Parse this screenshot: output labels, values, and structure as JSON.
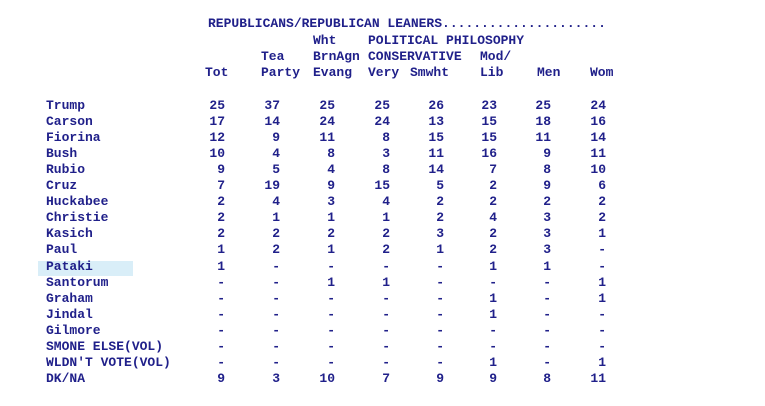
{
  "header": {
    "title_line": "REPUBLICANS/REPUBLICAN LEANERS.....................",
    "group_line1": {
      "wht": "Wht",
      "political_philosophy": "POLITICAL PHILOSOPHY"
    },
    "group_line2": {
      "tea": "Tea",
      "brnagn": "BrnAgn",
      "conservative": "CONSERVATIVE",
      "mod": "Mod/"
    },
    "columns": [
      "Tot",
      "Party",
      "Evang",
      "Very",
      "Smwht",
      "Lib",
      "Men",
      "Wom"
    ]
  },
  "table": {
    "rows": [
      {
        "label": "Trump",
        "values": [
          "25",
          "37",
          "25",
          "25",
          "26",
          "23",
          "25",
          "24"
        ]
      },
      {
        "label": "Carson",
        "values": [
          "17",
          "14",
          "24",
          "24",
          "13",
          "15",
          "18",
          "16"
        ]
      },
      {
        "label": "Fiorina",
        "values": [
          "12",
          "9",
          "11",
          "8",
          "15",
          "15",
          "11",
          "14"
        ]
      },
      {
        "label": "Bush",
        "values": [
          "10",
          "4",
          "8",
          "3",
          "11",
          "16",
          "9",
          "11"
        ]
      },
      {
        "label": "Rubio",
        "values": [
          "9",
          "5",
          "4",
          "8",
          "14",
          "7",
          "8",
          "10"
        ]
      },
      {
        "label": "Cruz",
        "values": [
          "7",
          "19",
          "9",
          "15",
          "5",
          "2",
          "9",
          "6"
        ]
      },
      {
        "label": "Huckabee",
        "values": [
          "2",
          "4",
          "3",
          "4",
          "2",
          "2",
          "2",
          "2"
        ]
      },
      {
        "label": "Christie",
        "values": [
          "2",
          "1",
          "1",
          "1",
          "2",
          "4",
          "3",
          "2"
        ]
      },
      {
        "label": "Kasich",
        "values": [
          "2",
          "2",
          "2",
          "2",
          "3",
          "2",
          "3",
          "1"
        ]
      },
      {
        "label": "Paul",
        "values": [
          "1",
          "2",
          "1",
          "2",
          "1",
          "2",
          "3",
          "-"
        ]
      },
      {
        "label": "Pataki",
        "values": [
          "1",
          "-",
          "-",
          "-",
          "-",
          "1",
          "1",
          "-"
        ],
        "highlight": true
      },
      {
        "label": "Santorum",
        "values": [
          "-",
          "-",
          "1",
          "1",
          "-",
          "-",
          "-",
          "1"
        ]
      },
      {
        "label": "Graham",
        "values": [
          "-",
          "-",
          "-",
          "-",
          "-",
          "1",
          "-",
          "1"
        ]
      },
      {
        "label": "Jindal",
        "values": [
          "-",
          "-",
          "-",
          "-",
          "-",
          "1",
          "-",
          "-"
        ]
      },
      {
        "label": "Gilmore",
        "values": [
          "-",
          "-",
          "-",
          "-",
          "-",
          "-",
          "-",
          "-"
        ]
      },
      {
        "label": "SMONE ELSE(VOL)",
        "values": [
          "-",
          "-",
          "-",
          "-",
          "-",
          "-",
          "-",
          "-"
        ]
      },
      {
        "label": "WLDN'T VOTE(VOL)",
        "values": [
          "-",
          "-",
          "-",
          "-",
          "-",
          "1",
          "-",
          "1"
        ]
      },
      {
        "label": "DK/NA",
        "values": [
          "9",
          "3",
          "10",
          "7",
          "9",
          "9",
          "8",
          "11"
        ]
      }
    ]
  },
  "colors": {
    "text": "#20208a",
    "highlight": "#d9eef8",
    "background": "#ffffff"
  }
}
